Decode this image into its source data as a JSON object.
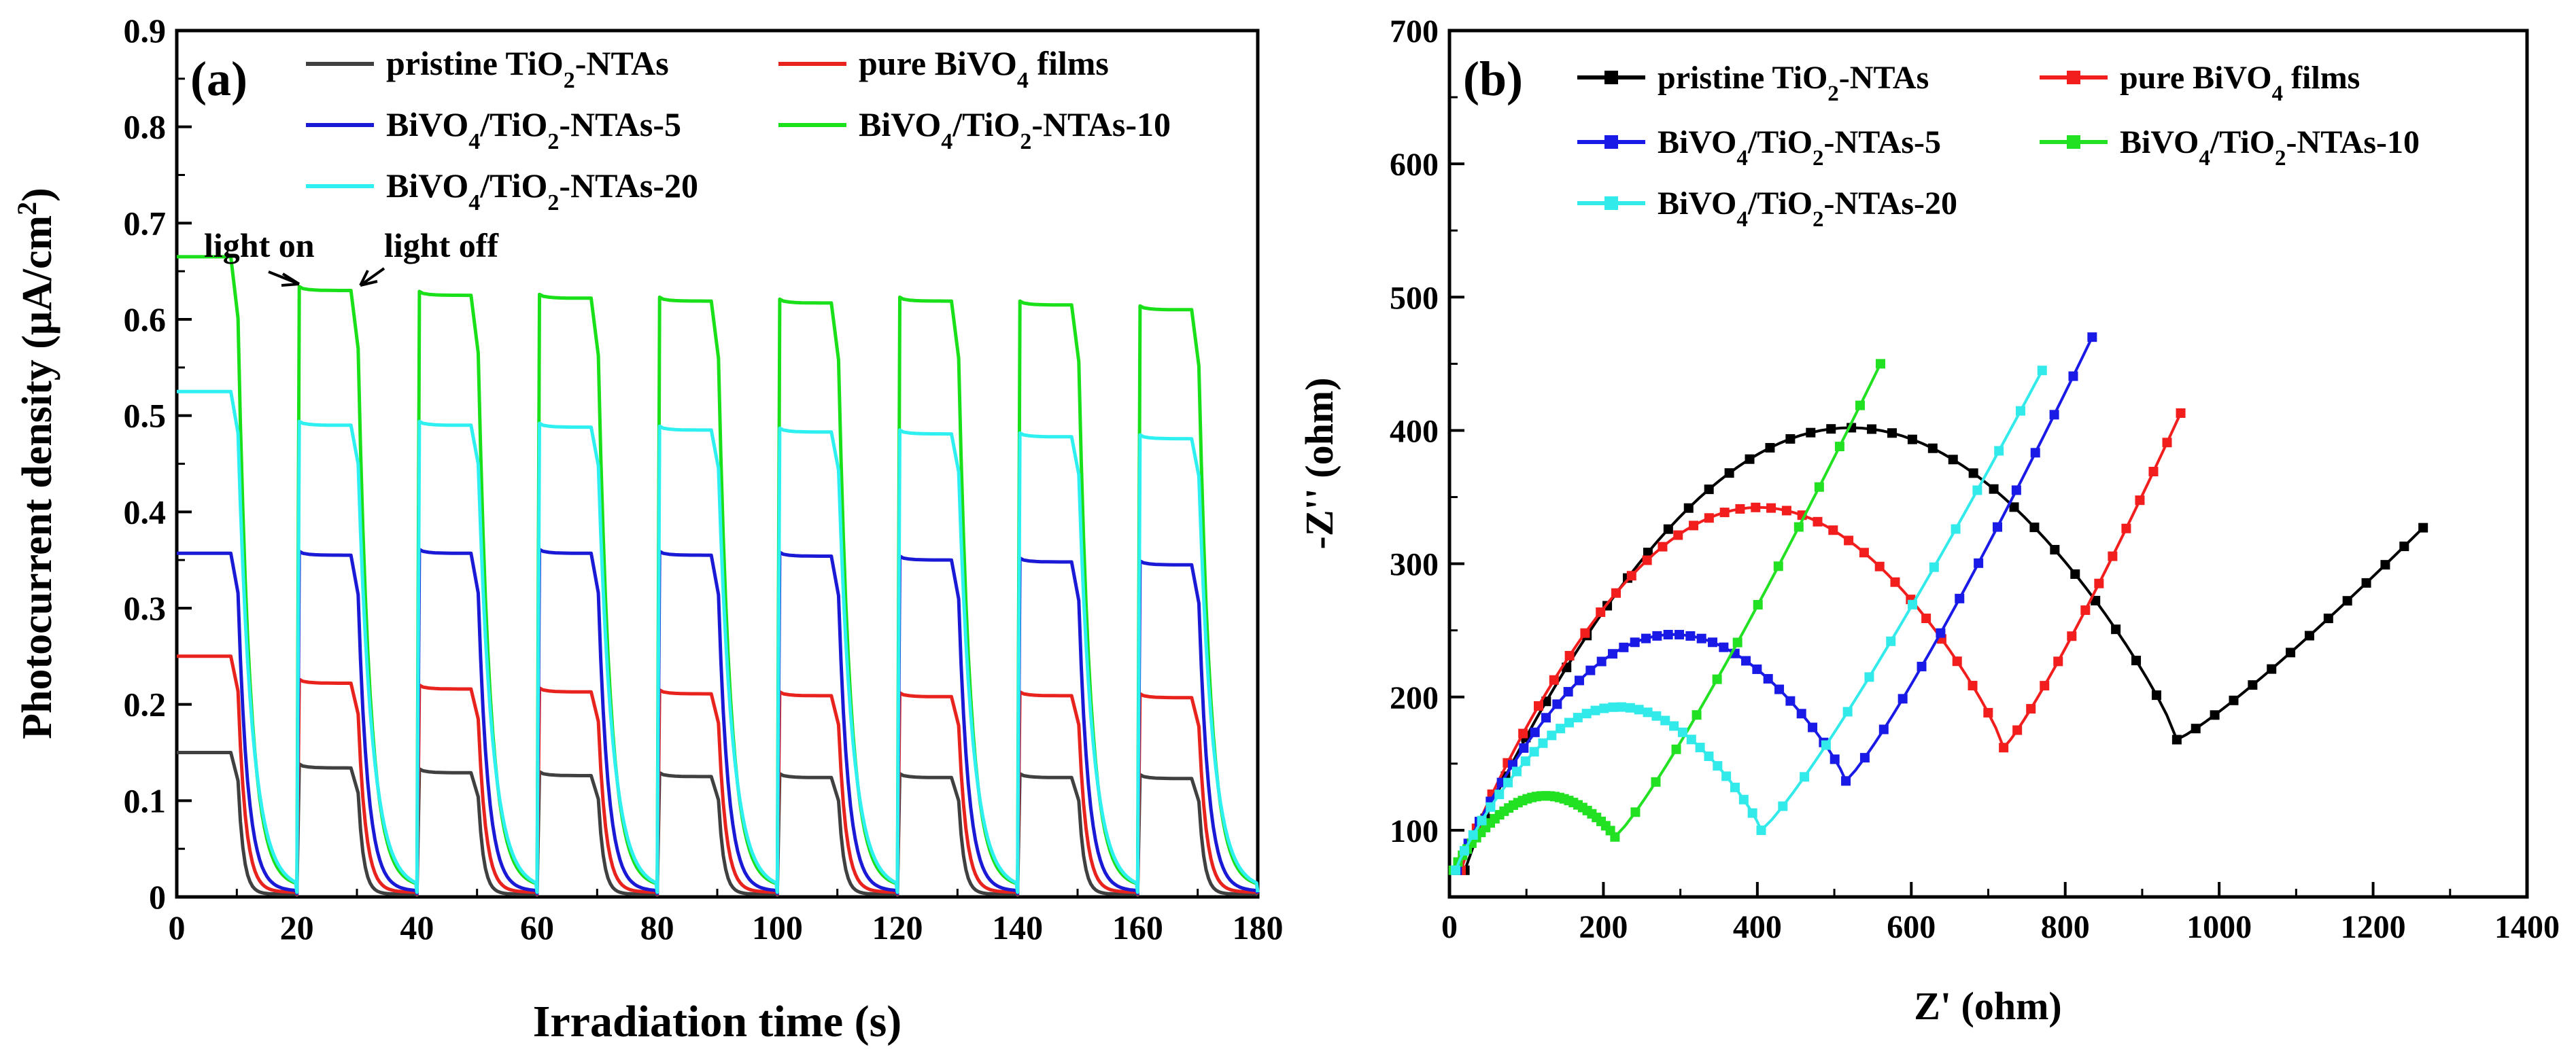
{
  "chart_data": [
    {
      "panel": "(a)",
      "type": "line",
      "xlabel": "Irradiation time (s)",
      "ylabel": "Photocurrent density (μA/cm²)",
      "xlim": [
        0,
        180
      ],
      "ylim": [
        0,
        0.9
      ],
      "xticks": [
        0,
        20,
        40,
        60,
        80,
        100,
        120,
        140,
        160,
        180
      ],
      "yticks": [
        0,
        0.1,
        0.2,
        0.3,
        0.4,
        0.5,
        0.6,
        0.7,
        0.8,
        0.9
      ],
      "xtick_labels": [
        "0",
        "20",
        "40",
        "60",
        "80",
        "100",
        "120",
        "140",
        "160",
        "180"
      ],
      "ytick_labels": [
        "0",
        "0.1",
        "0.2",
        "0.3",
        "0.4",
        "0.5",
        "0.6",
        "0.7",
        "0.8",
        "0.9"
      ],
      "legend_position": "top",
      "annotations": [
        {
          "text": "light on",
          "x": 20,
          "y": 0.632
        },
        {
          "text": "light off",
          "x": 30,
          "y": 0.632
        }
      ],
      "series": [
        {
          "name": "pristine TiO2-NTAs",
          "color": "#404040",
          "on": [
            0.15,
            0.134,
            0.129,
            0.126,
            0.125,
            0.124,
            0.124,
            0.124,
            0.123
          ],
          "off_tail": 0.003
        },
        {
          "name": "pure BiVO4 films",
          "color": "#e8231e",
          "on": [
            0.25,
            0.222,
            0.216,
            0.213,
            0.211,
            0.209,
            0.208,
            0.209,
            0.207
          ],
          "off_tail": 0.005
        },
        {
          "name": "BiVO4/TiO2-NTAs-5",
          "color": "#1a1ad6",
          "on": [
            0.357,
            0.355,
            0.357,
            0.357,
            0.355,
            0.354,
            0.35,
            0.348,
            0.345
          ],
          "off_tail": 0.006
        },
        {
          "name": "BiVO4/TiO2-NTAs-10",
          "color": "#19e019",
          "on": [
            0.665,
            0.63,
            0.625,
            0.622,
            0.619,
            0.617,
            0.619,
            0.615,
            0.61
          ],
          "off_tail": 0.01
        },
        {
          "name": "BiVO4/TiO2-NTAs-20",
          "color": "#2ef0f0",
          "on": [
            0.525,
            0.49,
            0.49,
            0.488,
            0.485,
            0.483,
            0.481,
            0.478,
            0.476
          ],
          "off_tail": 0.008
        }
      ]
    },
    {
      "panel": "(b)",
      "type": "line",
      "xlabel": "Z' (ohm)",
      "ylabel": "-Z'' (ohm)",
      "xlim": [
        0,
        1400
      ],
      "ylim": [
        50,
        700
      ],
      "xticks": [
        0,
        200,
        400,
        600,
        800,
        1000,
        1200,
        1400
      ],
      "yticks": [
        100,
        200,
        300,
        400,
        500,
        600,
        700
      ],
      "xtick_labels": [
        "0",
        "200",
        "400",
        "600",
        "800",
        "1000",
        "1200",
        "1400"
      ],
      "ytick_labels": [
        "100",
        "200",
        "300",
        "400",
        "500",
        "600",
        "700"
      ],
      "legend_position": "top",
      "series": [
        {
          "name": "pristine TiO2-NTAs",
          "color": "#000000",
          "marker": "square",
          "x0": 20,
          "r": 450,
          "ymin": 70,
          "peak": 400,
          "min_x": 945,
          "min_y": 168,
          "end_x": 1265,
          "end_y": 327
        },
        {
          "name": "pure BiVO4 films",
          "color": "#f21d1d",
          "marker": "square",
          "x0": 15,
          "r": 360,
          "ymin": 70,
          "peak": 340,
          "min_x": 720,
          "min_y": 162,
          "end_x": 950,
          "end_y": 413
        },
        {
          "name": "BiVO4/TiO2-NTAs-5",
          "color": "#1a1ae6",
          "marker": "square",
          "x0": 10,
          "r": 250,
          "ymin": 70,
          "peak": 245,
          "min_x": 515,
          "min_y": 137,
          "end_x": 835,
          "end_y": 470
        },
        {
          "name": "BiVO4/TiO2-NTAs-10",
          "color": "#22e022",
          "marker": "square",
          "x0": 5,
          "r": 105,
          "ymin": 70,
          "peak": 125,
          "min_x": 215,
          "min_y": 95,
          "end_x": 560,
          "end_y": 450
        },
        {
          "name": "BiVO4/TiO2-NTAs-20",
          "color": "#33eaea",
          "marker": "square",
          "x0": 8,
          "r": 200,
          "ymin": 70,
          "peak": 192,
          "min_x": 405,
          "min_y": 100,
          "end_x": 770,
          "end_y": 445
        }
      ]
    }
  ]
}
